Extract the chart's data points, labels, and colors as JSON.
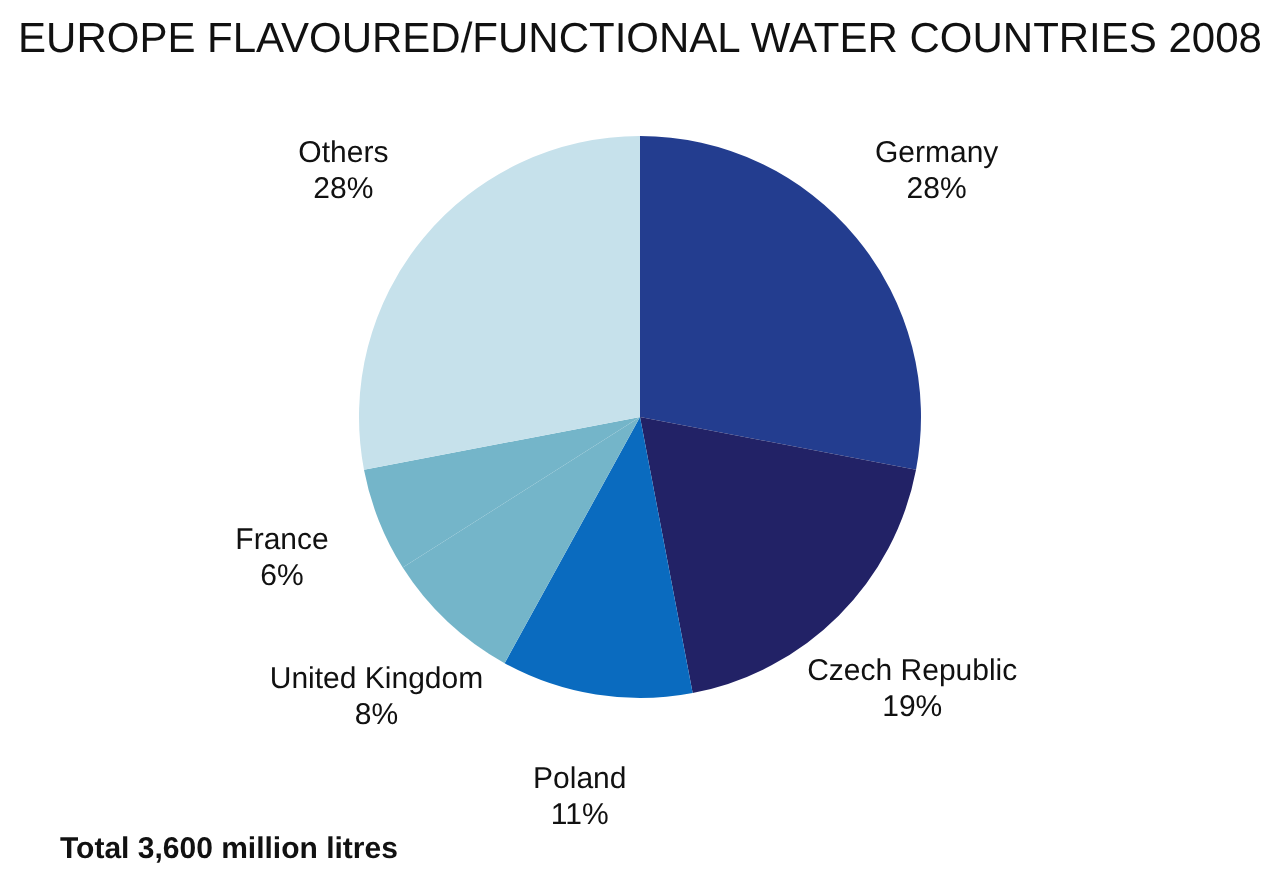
{
  "chart_data": {
    "type": "pie",
    "title": "EUROPE FLAVOURED/FUNCTIONAL WATER COUNTRIES 2008",
    "categories": [
      "Germany",
      "Czech Republic",
      "Poland",
      "United Kingdom",
      "France",
      "Others"
    ],
    "values": [
      28,
      19,
      11,
      8,
      6,
      28
    ],
    "value_labels": [
      "28%",
      "19%",
      "11%",
      "8%",
      "6%",
      "28%"
    ],
    "colors": [
      "#233d8f",
      "#222266",
      "#0a6bbf",
      "#74b5c9",
      "#74b5c9",
      "#c6e1eb"
    ],
    "annotations": [
      "Total 3,600 million litres"
    ]
  }
}
